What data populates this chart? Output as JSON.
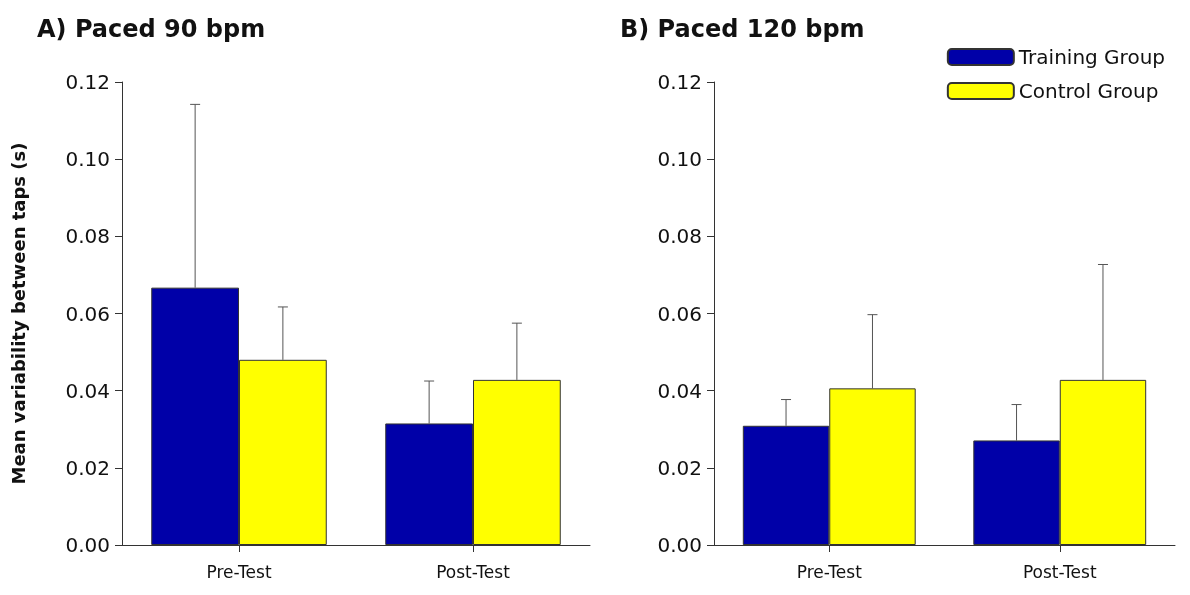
{
  "chart_data": [
    {
      "type": "bar",
      "title": "A) Paced 90 bpm",
      "ylabel": "Mean variability between taps (s)",
      "categories": [
        "Pre-Test",
        "Post-Test"
      ],
      "series": [
        {
          "color": "#0000a8",
          "values": [
            0.0667,
            0.0315
          ],
          "errors": [
            [
              0.0667,
              0.1142
            ],
            [
              0.0315,
              0.0425
            ]
          ]
        },
        {
          "color": "#ffff00",
          "values": [
            0.048,
            0.0428
          ],
          "errors": [
            [
              0.048,
              0.0617
            ],
            [
              0.0428,
              0.0575
            ]
          ]
        }
      ],
      "ylim": [
        0,
        0.12
      ],
      "yticks": [
        {
          "value": 0,
          "label": "0.00"
        },
        {
          "value": 0.02,
          "label": "0.02"
        },
        {
          "value": 0.04,
          "label": "0.04"
        },
        {
          "value": 0.06,
          "label": "0.06"
        },
        {
          "value": 0.08,
          "label": "0.08"
        },
        {
          "value": 0.1,
          "label": "0.10"
        },
        {
          "value": 0.12,
          "label": "0.12"
        }
      ],
      "grid": false,
      "legend": false
    },
    {
      "type": "bar",
      "title": "B) Paced 120 bpm",
      "categories": [
        "Pre-Test",
        "Post-Test"
      ],
      "series": [
        {
          "name": "Training Group",
          "color": "#0000a8",
          "values": [
            0.0309,
            0.0271
          ],
          "errors": [
            [
              0.0309,
              0.0377
            ],
            [
              0.0271,
              0.0364
            ]
          ]
        },
        {
          "name": "Control Group",
          "color": "#ffff00",
          "values": [
            0.0406,
            0.0428
          ],
          "errors": [
            [
              0.0406,
              0.0597
            ],
            [
              0.0428,
              0.0727
            ]
          ]
        }
      ],
      "ylim": [
        0,
        0.12
      ],
      "yticks": [
        {
          "value": 0,
          "label": "0.00"
        },
        {
          "value": 0.02,
          "label": "0.02"
        },
        {
          "value": 0.04,
          "label": "0.04"
        },
        {
          "value": 0.06,
          "label": "0.06"
        },
        {
          "value": 0.08,
          "label": "0.08"
        },
        {
          "value": 0.1,
          "label": "0.10"
        },
        {
          "value": 0.12,
          "label": "0.12"
        }
      ],
      "grid": false,
      "legend": "top right"
    }
  ]
}
